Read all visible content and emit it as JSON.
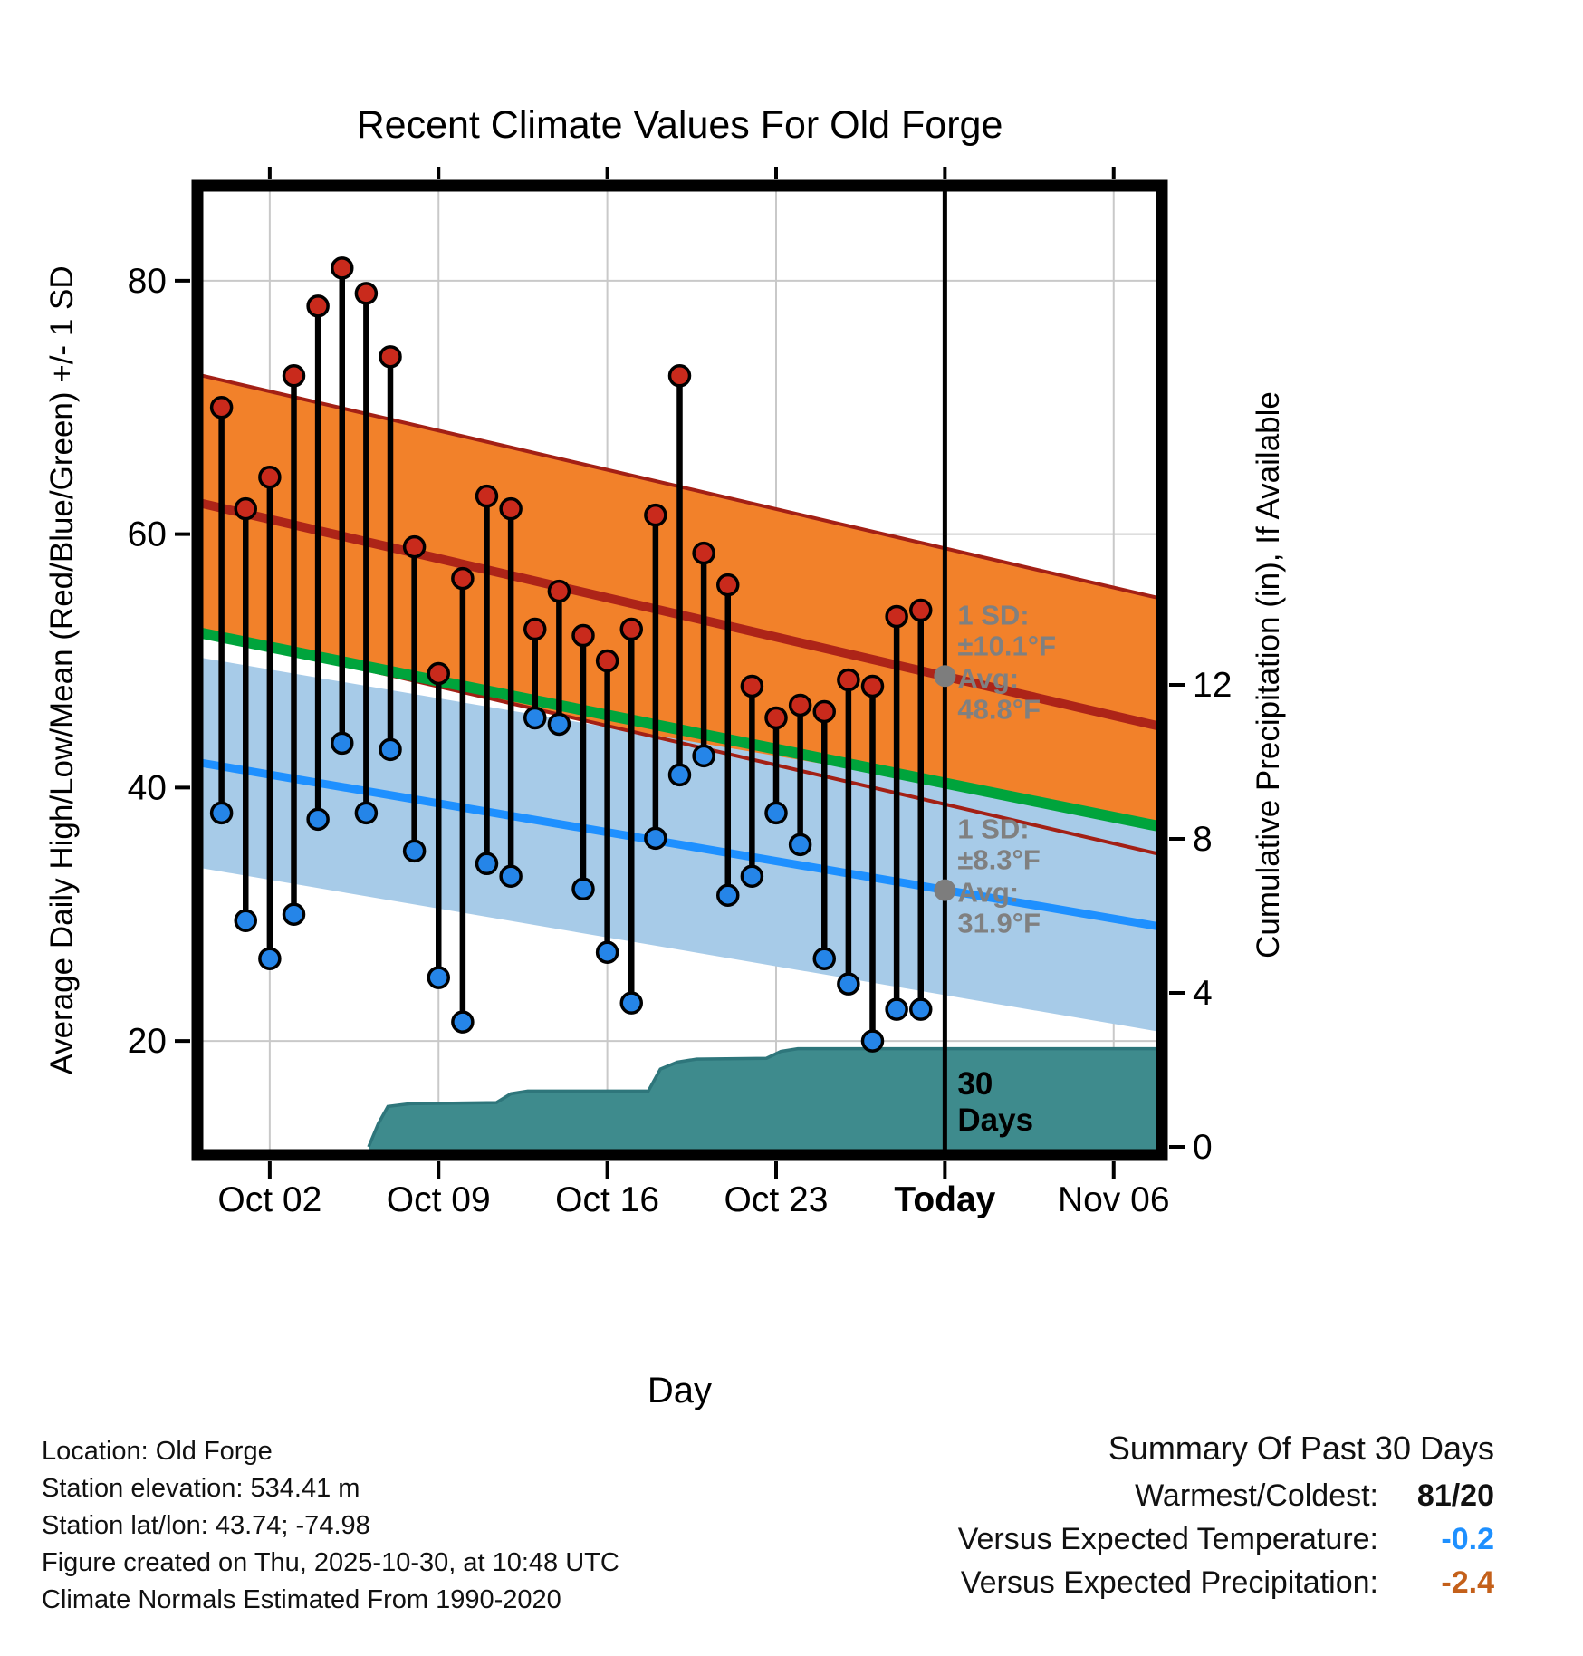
{
  "chart_data": {
    "type": "line",
    "title": "Recent Climate Values For Old Forge",
    "x_label": "Day",
    "y_left_label": "Average Daily High/Low/Mean (Red/Blue/Green) +/- 1 SD",
    "y_right_label": "Cumulative Precipitation (in), If Available",
    "temp_units": "°F",
    "precip_units": "in",
    "x_origin": "Sep 29",
    "x_day_span": 40,
    "today_day": 31,
    "temp_ylim": [
      11,
      87.5
    ],
    "y_left_ticks": [
      20,
      40,
      60,
      80
    ],
    "y_right_ticks": [
      0,
      4,
      8,
      12
    ],
    "x_ticks": [
      {
        "day": 3,
        "label": "Oct 02",
        "bold": false
      },
      {
        "day": 10,
        "label": "Oct 09",
        "bold": false
      },
      {
        "day": 17,
        "label": "Oct 16",
        "bold": false
      },
      {
        "day": 24,
        "label": "Oct 23",
        "bold": false
      },
      {
        "day": 31,
        "label": "Today",
        "bold": true
      },
      {
        "day": 38,
        "label": "Nov 06",
        "bold": false
      }
    ],
    "days": [
      "Sep 30",
      "Oct 01",
      "Oct 02",
      "Oct 03",
      "Oct 04",
      "Oct 05",
      "Oct 06",
      "Oct 07",
      "Oct 08",
      "Oct 09",
      "Oct 10",
      "Oct 11",
      "Oct 12",
      "Oct 13",
      "Oct 14",
      "Oct 15",
      "Oct 16",
      "Oct 17",
      "Oct 18",
      "Oct 19",
      "Oct 20",
      "Oct 21",
      "Oct 22",
      "Oct 23",
      "Oct 24",
      "Oct 25",
      "Oct 26",
      "Oct 27",
      "Oct 28",
      "Oct 29"
    ],
    "daily_high": [
      70,
      62,
      64.5,
      72.5,
      78,
      81,
      79,
      74,
      59,
      49,
      56.5,
      63,
      62,
      52.5,
      55.5,
      52,
      50,
      52.5,
      61.5,
      72.5,
      58.5,
      56,
      48,
      45.5,
      46.5,
      46,
      48.5,
      48,
      53.5,
      54
    ],
    "daily_low": [
      38,
      29.5,
      26.5,
      30,
      37.5,
      43.5,
      38,
      43,
      35,
      25,
      21.5,
      34,
      33,
      45.5,
      45,
      32,
      27,
      23,
      36,
      41,
      42.5,
      31.5,
      33,
      38,
      35.5,
      26.5,
      24.5,
      20,
      22.5,
      22.5
    ],
    "normals": {
      "high_start": 62.5,
      "high_end": 44.8,
      "high_sd": 10.1,
      "low_start": 42.0,
      "low_end": 29.0,
      "low_sd": 8.3
    },
    "precip_cumulative_steps": [
      [
        7.1,
        0
      ],
      [
        7.5,
        0.6
      ],
      [
        7.9,
        1.05
      ],
      [
        8.8,
        1.12
      ],
      [
        12.4,
        1.15
      ],
      [
        13.0,
        1.38
      ],
      [
        13.7,
        1.45
      ],
      [
        18.7,
        1.45
      ],
      [
        19.2,
        2.02
      ],
      [
        19.9,
        2.2
      ],
      [
        20.7,
        2.28
      ],
      [
        23.6,
        2.3
      ],
      [
        24.2,
        2.48
      ],
      [
        24.9,
        2.55
      ],
      [
        40,
        2.55
      ]
    ],
    "colors": {
      "high_band": "#F2812A",
      "high_edge": "#A32015",
      "high_line": "#AD2418",
      "low_band": "#A7CBE8",
      "low_line": "#1E90FF",
      "mean_line": "#00A43C",
      "precip_fill": "#3E8B8D",
      "precip_edge": "#2E767B",
      "high_dot": "#C92A1C",
      "low_dot": "#2585E8",
      "stem": "#000000",
      "today_line": "#000000",
      "avg_marker": "#7D7D7D",
      "annotation_text": "#808080",
      "grid": "#C9C9C9"
    }
  },
  "annotations": {
    "high": {
      "sd_label": "1 SD:",
      "sd_value": "±10.1°F",
      "avg_label": "Avg:",
      "avg_value": "48.8°F",
      "avg_temp": 48.8
    },
    "low": {
      "sd_label": "1 SD:",
      "sd_value": "±8.3°F",
      "avg_label": "Avg:",
      "avg_value": "31.9°F",
      "avg_temp": 31.9
    },
    "window": {
      "line1": "30",
      "line2": "Days"
    }
  },
  "footer_left": {
    "lines": [
      "Location: Old Forge",
      "Station elevation: 534.41 m",
      "Station lat/lon: 43.74; -74.98",
      "Figure created on Thu, 2025-10-30, at 10:48 UTC",
      "Climate Normals Estimated From 1990-2020"
    ]
  },
  "summary": {
    "title": "Summary Of Past 30 Days",
    "rows": [
      {
        "label": "Warmest/Coldest:",
        "value": "81/20",
        "color": "#111111"
      },
      {
        "label": "Versus Expected Temperature:",
        "value": "-0.2",
        "color": "#1E90FF"
      },
      {
        "label": "Versus Expected Precipitation:",
        "value": "-2.4",
        "color": "#C4601A"
      }
    ]
  }
}
